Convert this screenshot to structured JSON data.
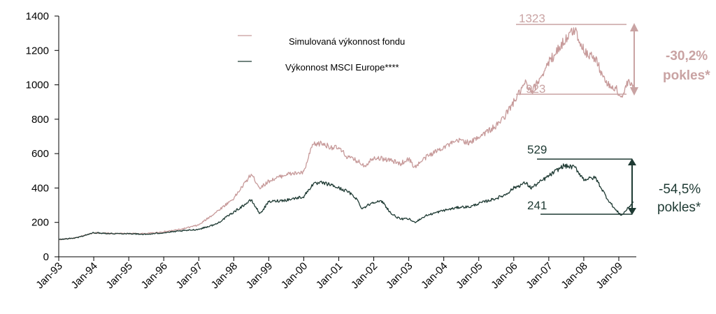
{
  "colors": {
    "fund": "#c79a9a",
    "msci": "#1e3a33",
    "axis": "#000000",
    "annotation_fund": "#c9a3a3",
    "annotation_msci": "#1e3a33"
  },
  "legend": {
    "fund": "Simulovaná výkonnost fondu",
    "msci": "Výkonnost MSCI Europe****"
  },
  "annotations": {
    "fund_peak": "1323",
    "fund_trough": "923",
    "fund_drop_pct": "-30,2%",
    "fund_drop_word": "pokles*",
    "msci_peak": "529",
    "msci_trough": "241",
    "msci_drop_pct": "-54,5%",
    "msci_drop_word": "pokles*"
  },
  "chart_data": {
    "type": "line",
    "ylim": [
      0,
      1400
    ],
    "yticks": [
      "0",
      "200",
      "400",
      "600",
      "800",
      "1000",
      "1200",
      "1400"
    ],
    "xticks": [
      "Jan-93",
      "Jan-94",
      "Jan-95",
      "Jan-96",
      "Jan-97",
      "Jan-98",
      "Jan-99",
      "Jan-00",
      "Jan-01",
      "Jan-02",
      "Jan-03",
      "Jan-04",
      "Jan-05",
      "Jan-06",
      "Jan-07",
      "Jan-08",
      "Jan-09"
    ],
    "grid": false,
    "legend_position": "top-center",
    "series": [
      {
        "name": "Simulovaná výkonnost fondu",
        "points": [
          [
            "1993-01",
            100
          ],
          [
            "1993-07",
            110
          ],
          [
            "1994-01",
            140
          ],
          [
            "1994-07",
            135
          ],
          [
            "1995-01",
            135
          ],
          [
            "1995-07",
            135
          ],
          [
            "1996-01",
            145
          ],
          [
            "1996-07",
            160
          ],
          [
            "1997-01",
            185
          ],
          [
            "1997-07",
            260
          ],
          [
            "1998-01",
            340
          ],
          [
            "1998-07",
            480
          ],
          [
            "1998-10",
            400
          ],
          [
            "1999-01",
            440
          ],
          [
            "1999-07",
            480
          ],
          [
            "2000-01",
            490
          ],
          [
            "2000-04",
            650
          ],
          [
            "2000-07",
            660
          ],
          [
            "2000-10",
            640
          ],
          [
            "2001-01",
            630
          ],
          [
            "2001-04",
            580
          ],
          [
            "2001-07",
            560
          ],
          [
            "2001-10",
            530
          ],
          [
            "2002-01",
            580
          ],
          [
            "2002-04",
            570
          ],
          [
            "2002-07",
            560
          ],
          [
            "2002-10",
            540
          ],
          [
            "2003-01",
            570
          ],
          [
            "2003-03",
            520
          ],
          [
            "2003-07",
            580
          ],
          [
            "2004-01",
            640
          ],
          [
            "2004-07",
            680
          ],
          [
            "2004-10",
            660
          ],
          [
            "2005-01",
            700
          ],
          [
            "2005-07",
            760
          ],
          [
            "2005-10",
            820
          ],
          [
            "2006-01",
            900
          ],
          [
            "2006-05",
            1010
          ],
          [
            "2006-07",
            950
          ],
          [
            "2007-01",
            1130
          ],
          [
            "2007-06",
            1250
          ],
          [
            "2007-10",
            1323
          ],
          [
            "2008-01",
            1200
          ],
          [
            "2008-05",
            1150
          ],
          [
            "2008-09",
            1000
          ],
          [
            "2008-12",
            980
          ],
          [
            "2009-02",
            923
          ],
          [
            "2009-04",
            1010
          ],
          [
            "2009-06",
            1000
          ]
        ]
      },
      {
        "name": "Výkonnost MSCI Europe****",
        "points": [
          [
            "1993-01",
            100
          ],
          [
            "1993-07",
            110
          ],
          [
            "1994-01",
            140
          ],
          [
            "1994-07",
            135
          ],
          [
            "1995-01",
            135
          ],
          [
            "1995-07",
            130
          ],
          [
            "1996-01",
            140
          ],
          [
            "1996-07",
            150
          ],
          [
            "1997-01",
            160
          ],
          [
            "1997-07",
            190
          ],
          [
            "1998-01",
            260
          ],
          [
            "1998-07",
            330
          ],
          [
            "1998-10",
            250
          ],
          [
            "1999-01",
            320
          ],
          [
            "1999-07",
            330
          ],
          [
            "2000-01",
            350
          ],
          [
            "2000-04",
            420
          ],
          [
            "2000-07",
            430
          ],
          [
            "2000-10",
            420
          ],
          [
            "2001-01",
            400
          ],
          [
            "2001-04",
            380
          ],
          [
            "2001-07",
            340
          ],
          [
            "2001-09",
            280
          ],
          [
            "2002-01",
            320
          ],
          [
            "2002-04",
            320
          ],
          [
            "2002-07",
            250
          ],
          [
            "2002-10",
            220
          ],
          [
            "2003-01",
            220
          ],
          [
            "2003-03",
            200
          ],
          [
            "2003-07",
            240
          ],
          [
            "2004-01",
            270
          ],
          [
            "2004-07",
            290
          ],
          [
            "2004-10",
            290
          ],
          [
            "2005-01",
            310
          ],
          [
            "2005-07",
            340
          ],
          [
            "2005-10",
            360
          ],
          [
            "2006-01",
            400
          ],
          [
            "2006-05",
            430
          ],
          [
            "2006-07",
            400
          ],
          [
            "2007-01",
            470
          ],
          [
            "2007-06",
            529
          ],
          [
            "2007-10",
            520
          ],
          [
            "2008-01",
            450
          ],
          [
            "2008-05",
            460
          ],
          [
            "2008-09",
            340
          ],
          [
            "2008-12",
            270
          ],
          [
            "2009-02",
            241
          ],
          [
            "2009-04",
            280
          ],
          [
            "2009-06",
            320
          ]
        ]
      }
    ]
  }
}
